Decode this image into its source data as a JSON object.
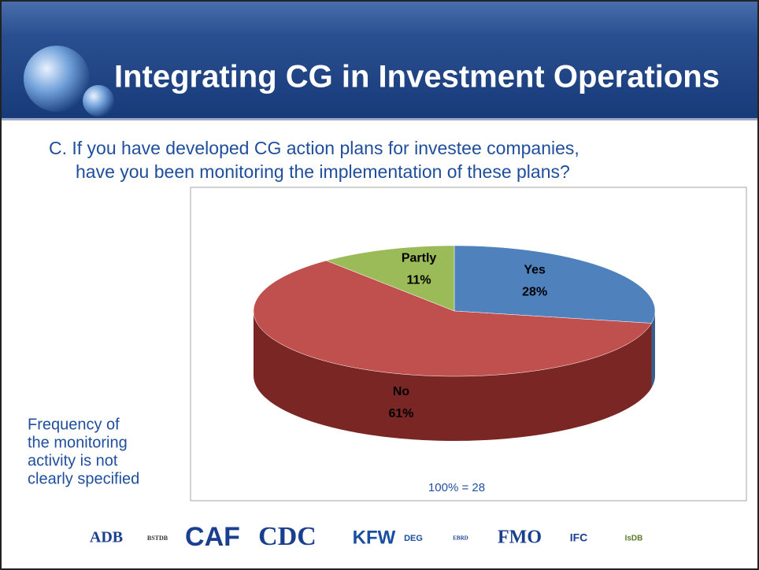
{
  "chart_data": {
    "type": "pie",
    "title": "Integrating CG in Investment Operations",
    "subtitle": [
      "C. If you have developed CG action plans for investee companies,",
      "have you been monitoring the implementation of these plans?"
    ],
    "categories": [
      "Yes",
      "No",
      "Partly"
    ],
    "values": [
      28,
      61,
      11
    ],
    "value_labels": [
      "28%",
      "61%",
      "11%"
    ],
    "colors": [
      "#4f81bd",
      "#c0504d",
      "#9bbb59"
    ],
    "side_colors": [
      "#385d8a",
      "#7a2624",
      "#6e8a3a"
    ],
    "annotation": "100% = 28",
    "note": [
      "Frequency of",
      "the monitoring",
      "activity is not",
      "clearly specified"
    ],
    "logos": [
      "ADB",
      "BSTDB",
      "CAF",
      "CDC",
      "KFW",
      "DEG",
      "EBRD",
      "FMO",
      "IFC",
      "IsDB"
    ]
  }
}
